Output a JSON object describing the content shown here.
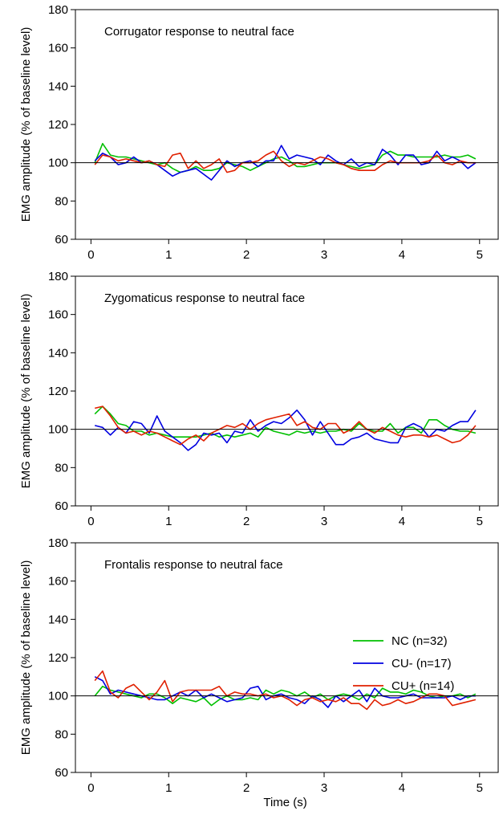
{
  "chart_data": [
    {
      "type": "line",
      "title": "Corrugator response to neutral face",
      "ylabel": "EMG amplitude (% of baseline level)",
      "xlabel": "",
      "xlim": [
        -0.2,
        5.25
      ],
      "ylim": [
        60,
        180
      ],
      "xticks": [
        "0",
        "1",
        "2",
        "3",
        "4",
        "5"
      ],
      "yticks": [
        "60",
        "80",
        "100",
        "120",
        "140",
        "160",
        "180"
      ],
      "reference_line": 100,
      "legend": false,
      "x": [
        0.05,
        0.15,
        0.25,
        0.35,
        0.45,
        0.55,
        0.65,
        0.75,
        0.85,
        0.95,
        1.05,
        1.15,
        1.25,
        1.35,
        1.45,
        1.55,
        1.65,
        1.75,
        1.85,
        1.95,
        2.05,
        2.15,
        2.25,
        2.35,
        2.45,
        2.55,
        2.65,
        2.75,
        2.85,
        2.95,
        3.05,
        3.15,
        3.25,
        3.35,
        3.45,
        3.55,
        3.65,
        3.75,
        3.85,
        3.95,
        4.05,
        4.15,
        4.25,
        4.35,
        4.45,
        4.55,
        4.65,
        4.75,
        4.85,
        4.95
      ],
      "series": [
        {
          "name": "NC (n=32)",
          "color": "#00c000",
          "values": [
            100,
            110,
            104,
            103,
            103,
            102,
            101,
            100,
            99,
            100,
            97,
            95,
            96,
            98,
            96,
            96,
            97,
            100,
            99,
            98,
            96,
            98,
            100,
            102,
            103,
            101,
            98,
            98,
            99,
            100,
            100,
            100,
            99,
            98,
            97,
            98,
            99,
            104,
            106,
            104,
            104,
            103,
            103,
            103,
            103,
            104,
            103,
            103,
            104,
            102
          ]
        },
        {
          "name": "CU- (n=17)",
          "color": "#0000e0",
          "values": [
            101,
            105,
            103,
            99,
            100,
            103,
            100,
            101,
            99,
            96,
            93,
            95,
            96,
            97,
            94,
            91,
            96,
            101,
            98,
            100,
            101,
            98,
            101,
            101,
            109,
            102,
            104,
            103,
            102,
            99,
            104,
            101,
            99,
            102,
            98,
            100,
            99,
            107,
            104,
            99,
            104,
            104,
            99,
            100,
            106,
            101,
            103,
            101,
            97,
            100
          ]
        },
        {
          "name": "CU+ (n=14)",
          "color": "#e02000",
          "values": [
            99,
            104,
            103,
            101,
            102,
            101,
            100,
            101,
            99,
            98,
            104,
            105,
            97,
            101,
            97,
            99,
            102,
            95,
            96,
            100,
            100,
            101,
            104,
            106,
            101,
            98,
            100,
            99,
            101,
            103,
            102,
            100,
            99,
            97,
            96,
            96,
            96,
            99,
            101,
            100,
            100,
            100,
            100,
            101,
            104,
            100,
            99,
            101,
            100,
            100
          ]
        }
      ]
    },
    {
      "type": "line",
      "title": "Zygomaticus response to neutral face",
      "ylabel": "EMG amplitude (% of baseline level)",
      "xlabel": "",
      "xlim": [
        -0.2,
        5.25
      ],
      "ylim": [
        60,
        180
      ],
      "xticks": [
        "0",
        "1",
        "2",
        "3",
        "4",
        "5"
      ],
      "yticks": [
        "60",
        "80",
        "100",
        "120",
        "140",
        "160",
        "180"
      ],
      "reference_line": 100,
      "legend": false,
      "x": [
        0.05,
        0.15,
        0.25,
        0.35,
        0.45,
        0.55,
        0.65,
        0.75,
        0.85,
        0.95,
        1.05,
        1.15,
        1.25,
        1.35,
        1.45,
        1.55,
        1.65,
        1.75,
        1.85,
        1.95,
        2.05,
        2.15,
        2.25,
        2.35,
        2.45,
        2.55,
        2.65,
        2.75,
        2.85,
        2.95,
        3.05,
        3.15,
        3.25,
        3.35,
        3.45,
        3.55,
        3.65,
        3.75,
        3.85,
        3.95,
        4.05,
        4.15,
        4.25,
        4.35,
        4.45,
        4.55,
        4.65,
        4.75,
        4.85,
        4.95
      ],
      "series": [
        {
          "name": "NC (n=32)",
          "color": "#00c000",
          "values": [
            108,
            112,
            108,
            103,
            102,
            99,
            99,
            97,
            98,
            97,
            96,
            96,
            96,
            96,
            97,
            98,
            96,
            97,
            96,
            97,
            98,
            96,
            101,
            99,
            98,
            97,
            99,
            98,
            99,
            98,
            99,
            99,
            100,
            99,
            103,
            100,
            99,
            99,
            103,
            98,
            101,
            101,
            98,
            105,
            105,
            102,
            100,
            99,
            99,
            98
          ]
        },
        {
          "name": "CU- (n=17)",
          "color": "#0000e0",
          "values": [
            102,
            101,
            97,
            101,
            98,
            104,
            103,
            98,
            107,
            99,
            96,
            93,
            89,
            92,
            98,
            97,
            98,
            93,
            99,
            98,
            105,
            99,
            102,
            104,
            103,
            106,
            110,
            105,
            97,
            104,
            98,
            92,
            92,
            95,
            96,
            98,
            95,
            94,
            93,
            93,
            101,
            103,
            101,
            96,
            100,
            99,
            102,
            104,
            104,
            110
          ]
        },
        {
          "name": "CU+ (n=14)",
          "color": "#e02000",
          "values": [
            111,
            112,
            107,
            101,
            98,
            99,
            97,
            99,
            98,
            96,
            94,
            92,
            95,
            97,
            94,
            98,
            100,
            102,
            101,
            103,
            100,
            103,
            105,
            106,
            107,
            108,
            102,
            104,
            101,
            100,
            103,
            103,
            98,
            100,
            104,
            100,
            98,
            101,
            99,
            97,
            96,
            97,
            97,
            96,
            97,
            95,
            93,
            94,
            97,
            102
          ]
        }
      ]
    },
    {
      "type": "line",
      "title": "Frontalis response to neutral face",
      "ylabel": "EMG amplitude (% of baseline level)",
      "xlabel": "Time (s)",
      "xlim": [
        -0.2,
        5.25
      ],
      "ylim": [
        60,
        180
      ],
      "xticks": [
        "0",
        "1",
        "2",
        "3",
        "4",
        "5"
      ],
      "yticks": [
        "60",
        "80",
        "100",
        "120",
        "140",
        "160",
        "180"
      ],
      "reference_line": 100,
      "legend": true,
      "legend_position": "right",
      "x": [
        0.05,
        0.15,
        0.25,
        0.35,
        0.45,
        0.55,
        0.65,
        0.75,
        0.85,
        0.95,
        1.05,
        1.15,
        1.25,
        1.35,
        1.45,
        1.55,
        1.65,
        1.75,
        1.85,
        1.95,
        2.05,
        2.15,
        2.25,
        2.35,
        2.45,
        2.55,
        2.65,
        2.75,
        2.85,
        2.95,
        3.05,
        3.15,
        3.25,
        3.35,
        3.45,
        3.55,
        3.65,
        3.75,
        3.85,
        3.95,
        4.05,
        4.15,
        4.25,
        4.35,
        4.45,
        4.55,
        4.65,
        4.75,
        4.85,
        4.95
      ],
      "series": [
        {
          "name": "NC (n=32)",
          "color": "#00c000",
          "values": [
            100,
            105,
            103,
            102,
            101,
            100,
            99,
            101,
            101,
            99,
            96,
            99,
            98,
            97,
            99,
            95,
            98,
            100,
            98,
            98,
            99,
            98,
            103,
            101,
            103,
            102,
            100,
            102,
            99,
            101,
            98,
            100,
            101,
            100,
            98,
            101,
            99,
            104,
            102,
            102,
            101,
            103,
            102,
            100,
            99,
            100,
            100,
            101,
            99,
            101
          ]
        },
        {
          "name": "CU- (n=17)",
          "color": "#0000e0",
          "values": [
            110,
            108,
            101,
            103,
            102,
            101,
            100,
            99,
            98,
            98,
            100,
            102,
            100,
            103,
            99,
            101,
            99,
            97,
            98,
            99,
            104,
            105,
            98,
            100,
            101,
            99,
            98,
            96,
            100,
            98,
            94,
            100,
            97,
            100,
            103,
            97,
            104,
            100,
            99,
            99,
            100,
            101,
            99,
            99,
            99,
            99,
            100,
            98,
            100,
            100
          ]
        },
        {
          "name": "CU+ (n=14)",
          "color": "#e02000",
          "values": [
            108,
            113,
            102,
            99,
            104,
            106,
            102,
            98,
            102,
            108,
            97,
            102,
            103,
            103,
            103,
            103,
            105,
            100,
            102,
            101,
            101,
            100,
            101,
            99,
            100,
            98,
            95,
            98,
            99,
            97,
            98,
            97,
            99,
            96,
            96,
            93,
            98,
            95,
            96,
            98,
            96,
            97,
            99,
            101,
            101,
            100,
            95,
            96,
            97,
            98
          ]
        }
      ]
    }
  ]
}
